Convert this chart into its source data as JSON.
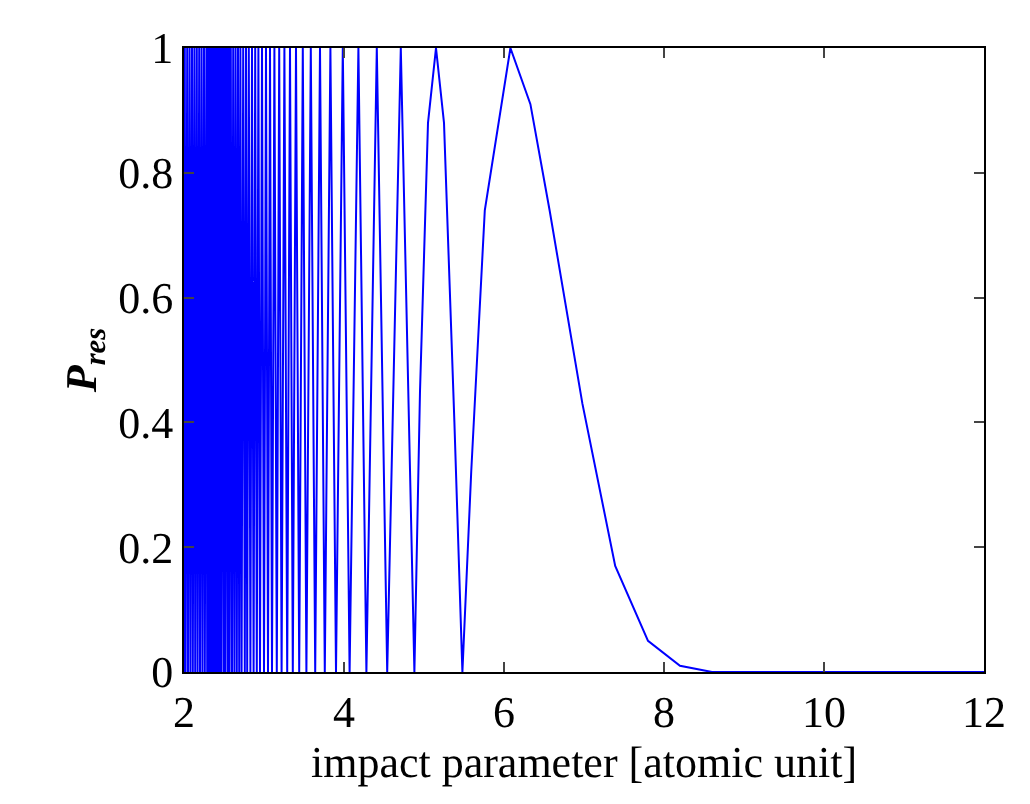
{
  "chart_data": {
    "type": "line",
    "xlabel": "impact parameter [atomic unit]",
    "ylabel": "P$_{res}$",
    "x": [
      2.0,
      2.01,
      2.02,
      2.04,
      2.05,
      2.07,
      2.08,
      2.1,
      2.11,
      2.13,
      2.14,
      2.16,
      2.17,
      2.19,
      2.2,
      2.22,
      2.23,
      2.25,
      2.26,
      2.28,
      2.29,
      2.3,
      2.31,
      2.32,
      2.33,
      2.34,
      2.35,
      2.36,
      2.37,
      2.38,
      2.39,
      2.4,
      2.41,
      2.42,
      2.43,
      2.44,
      2.45,
      2.46,
      2.47,
      2.485,
      2.5,
      2.51,
      2.52,
      2.535,
      2.55,
      2.56,
      2.57,
      2.585,
      2.6,
      2.615,
      2.63,
      2.645,
      2.66,
      2.675,
      2.69,
      2.705,
      2.72,
      2.74,
      2.76,
      2.775,
      2.79,
      2.81,
      2.83,
      2.85,
      2.87,
      2.89,
      2.91,
      2.93,
      2.95,
      2.975,
      3.0,
      3.025,
      3.05,
      3.075,
      3.1,
      3.13,
      3.16,
      3.19,
      3.22,
      3.255,
      3.29,
      3.325,
      3.36,
      3.4,
      3.44,
      3.485,
      3.53,
      3.585,
      3.64,
      3.7,
      3.76,
      3.83,
      3.9,
      3.985,
      4.07,
      4.18,
      4.28,
      4.41,
      4.54,
      4.71,
      4.88,
      4.95,
      5.05,
      5.15,
      5.25,
      5.38,
      5.48,
      5.59,
      5.76,
      6.08,
      6.33,
      6.57,
      6.98,
      7.39,
      7.8,
      8.2,
      8.6,
      9.0,
      12.0
    ],
    "series": [
      {
        "color": "#0000ff",
        "values": [
          0,
          1,
          0,
          1,
          0,
          1,
          0,
          1,
          0,
          1,
          0,
          1,
          0,
          1,
          0,
          1,
          0,
          1,
          0,
          1,
          0,
          1,
          0,
          1,
          0,
          1,
          0,
          1,
          0,
          1,
          0,
          1,
          0,
          1,
          0,
          1,
          0,
          1,
          0,
          1,
          0,
          1,
          0,
          1,
          0,
          1,
          0,
          1,
          0,
          1,
          0,
          1,
          0,
          1,
          0,
          1,
          0,
          1,
          0,
          1,
          0,
          1,
          0,
          1,
          0,
          1,
          0,
          1,
          0,
          1,
          0,
          1,
          0,
          1,
          0,
          1,
          0,
          1,
          0,
          1,
          0,
          1,
          0,
          1,
          0,
          1,
          0,
          1,
          0,
          1,
          0,
          1,
          0,
          1,
          0,
          1,
          0,
          1,
          0,
          1,
          0,
          0.45,
          0.88,
          1,
          0.88,
          0.4,
          0,
          0.32,
          0.74,
          1,
          0.91,
          0.74,
          0.43,
          0.17,
          0.05,
          0.01,
          0,
          0,
          0
        ]
      }
    ],
    "xlim": [
      2,
      12
    ],
    "xticks": [
      2,
      4,
      6,
      8,
      10,
      12
    ],
    "ylim": [
      0,
      1
    ],
    "yticks": [
      0,
      0.2,
      0.4,
      0.6,
      0.8,
      1
    ],
    "grid": false,
    "marker": "none",
    "line_style": "solid"
  }
}
